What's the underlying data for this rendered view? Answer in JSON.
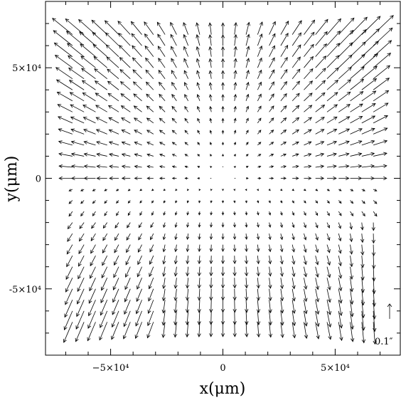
{
  "chart_data": {
    "type": "quiver",
    "title": "",
    "xlabel": "x(μm)",
    "ylabel": "y(μm)",
    "xlim": [
      -79000,
      79000
    ],
    "ylim": [
      -80000,
      80000
    ],
    "x_ticks": [
      {
        "value": -50000,
        "label": "−5×10⁴"
      },
      {
        "value": 0,
        "label": "0"
      },
      {
        "value": 50000,
        "label": "5×10⁴"
      }
    ],
    "y_ticks": [
      {
        "value": -50000,
        "label": "-5×10⁴"
      },
      {
        "value": 0,
        "label": "0"
      },
      {
        "value": 50000,
        "label": "5×10⁴"
      }
    ],
    "grid": false,
    "field": {
      "x_range": [
        -67000,
        67000
      ],
      "y_range": [
        -65000,
        65000
      ],
      "nx": 27,
      "ny": 27,
      "description_units": "arcsec",
      "radial_coefficient": 0.45,
      "shear_coefficient": 0.3
    },
    "scale_key": {
      "label": "0.1″",
      "magnitude": 0.1,
      "direction": "up",
      "position": "bottom-right outside field"
    },
    "colors": {
      "arrow": "#000000",
      "frame": "#000000"
    }
  }
}
